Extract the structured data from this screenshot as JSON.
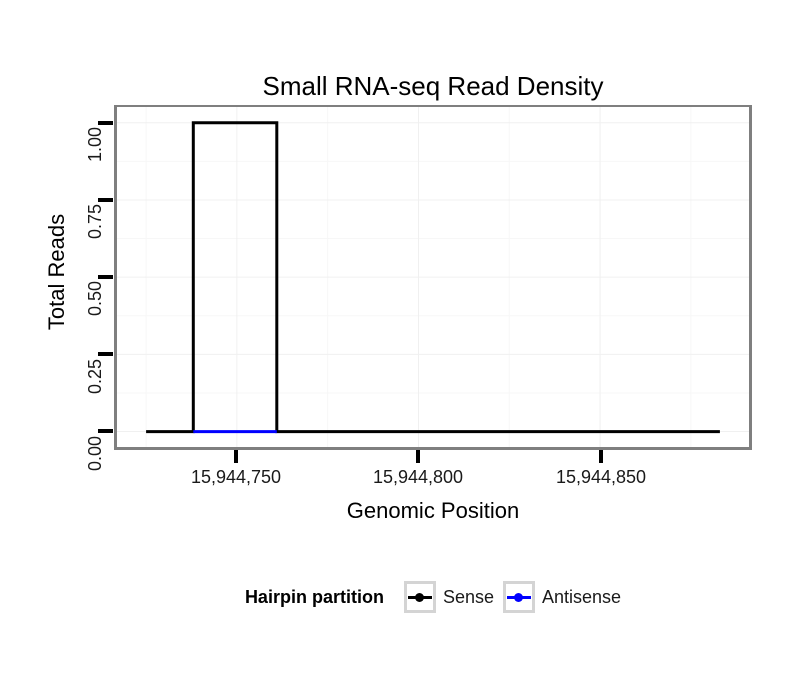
{
  "chart_data": {
    "type": "line",
    "subtype": "step",
    "title": "Small RNA-seq Read Density",
    "xlabel": "Genomic Position",
    "ylabel": "Total Reads",
    "x_domain": [
      15944717,
      15944891
    ],
    "y_domain": [
      -0.05,
      1.051
    ],
    "x_ticks": [
      {
        "value": 15944750,
        "label": "15,944,750"
      },
      {
        "value": 15944800,
        "label": "15,944,800"
      },
      {
        "value": 15944850,
        "label": "15,944,850"
      }
    ],
    "x_minor": [
      15944725,
      15944775,
      15944825,
      15944875
    ],
    "y_ticks": [
      {
        "value": 0.0,
        "label": "0.00"
      },
      {
        "value": 0.25,
        "label": "0.25"
      },
      {
        "value": 0.5,
        "label": "0.50"
      },
      {
        "value": 0.75,
        "label": "0.75"
      },
      {
        "value": 1.0,
        "label": "1.00"
      }
    ],
    "y_minor": [
      0.125,
      0.375,
      0.625,
      0.875
    ],
    "grid": "major and minor gridlines, very faint gray on white panel",
    "series": [
      {
        "name": "Sense",
        "color": "#000000",
        "points": [
          [
            15944725,
            0
          ],
          [
            15944738,
            0
          ],
          [
            15944738,
            1
          ],
          [
            15944761,
            1
          ],
          [
            15944761,
            0
          ],
          [
            15944883,
            0
          ]
        ]
      },
      {
        "name": "Antisense",
        "color": "#0000FF",
        "points": [
          [
            15944738,
            0
          ],
          [
            15944761,
            0
          ]
        ]
      }
    ],
    "legend": {
      "title": "Hairpin partition",
      "position": "bottom",
      "entries": [
        {
          "label": "Sense",
          "color": "#000000"
        },
        {
          "label": "Antisense",
          "color": "#0000FF"
        }
      ]
    }
  },
  "colors": {
    "background": "#ffffff",
    "panel_border": "#7f7f7f",
    "grid_major": "#f0f0f0",
    "grid_minor": "#f7f7f7",
    "tick_mark": "#000000",
    "axis_text": "#1a1a1a",
    "legend_key_border": "#d4d4d4",
    "sense": "#000000",
    "antisense": "#0000FF"
  }
}
